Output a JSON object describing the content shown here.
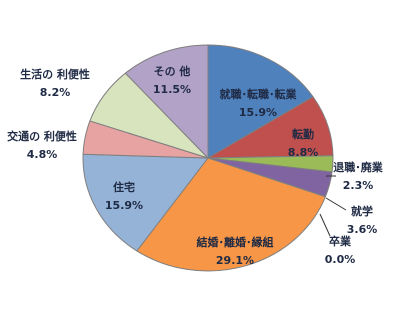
{
  "chart_data": {
    "type": "pie",
    "categories": [
      "就職･転職･転業",
      "転勤",
      "退職･廃業",
      "就学",
      "卒業",
      "結婚･離婚･縁組",
      "住宅",
      "交通の 利便性",
      "生活の 利便性",
      "その 他"
    ],
    "values": [
      15.9,
      8.8,
      2.3,
      3.6,
      0.0,
      29.1,
      15.9,
      4.8,
      8.2,
      11.5
    ],
    "value_labels": [
      "15.9%",
      "8.8%",
      "2.3%",
      "3.6%",
      "0.0%",
      "29.1%",
      "15.9%",
      "4.8%",
      "8.2%",
      "11.5%"
    ],
    "colors": [
      "#4f81bd",
      "#c0504d",
      "#9bbb59",
      "#8064a2",
      "#4bacc6",
      "#f79646",
      "#95b3d7",
      "#e6a3a1",
      "#d7e4bd",
      "#b3a2c7"
    ]
  }
}
